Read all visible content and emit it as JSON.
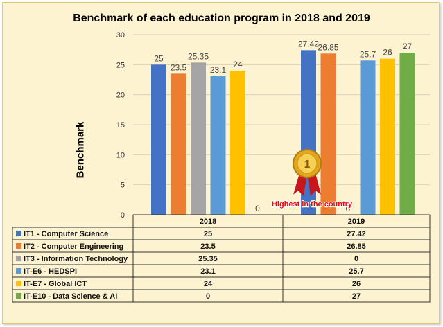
{
  "chart_data": {
    "type": "bar",
    "title": "Benchmark of each education program in 2018 and 2019",
    "ylabel": "Benchmark",
    "xlabel": "",
    "categories": [
      "2018",
      "2019"
    ],
    "ylim": [
      0,
      30
    ],
    "yticks": [
      0,
      5,
      10,
      15,
      20,
      25,
      30
    ],
    "grid": true,
    "legend_placement": "data-table-bottom",
    "series": [
      {
        "name": "IT1 - Computer Science",
        "color": "#4472c4",
        "values": [
          25,
          27.42
        ],
        "labels": [
          "25",
          "27.42"
        ]
      },
      {
        "name": "IT2 - Computer Engineering",
        "color": "#ed7d31",
        "values": [
          23.5,
          26.85
        ],
        "labels": [
          "23.5",
          "26.85"
        ]
      },
      {
        "name": "IT3 - Information Technology",
        "color": "#a5a5a5",
        "values": [
          25.35,
          0
        ],
        "labels": [
          "25.35",
          "0"
        ]
      },
      {
        "name": "IT-E6 - HEDSPI",
        "color": "#5b9bd5",
        "values": [
          23.1,
          25.7
        ],
        "labels": [
          "23.1",
          "25.7"
        ]
      },
      {
        "name": "IT-E7 - Global ICT",
        "color": "#ffc000",
        "values": [
          24,
          26
        ],
        "labels": [
          "24",
          "26"
        ]
      },
      {
        "name": "IT-E10 - Data Science & AI",
        "color": "#70ad47",
        "values": [
          0,
          27
        ],
        "labels": [
          "0",
          "27"
        ]
      }
    ],
    "annotation": {
      "text": "Highest in the country",
      "medal_text": "1"
    }
  }
}
